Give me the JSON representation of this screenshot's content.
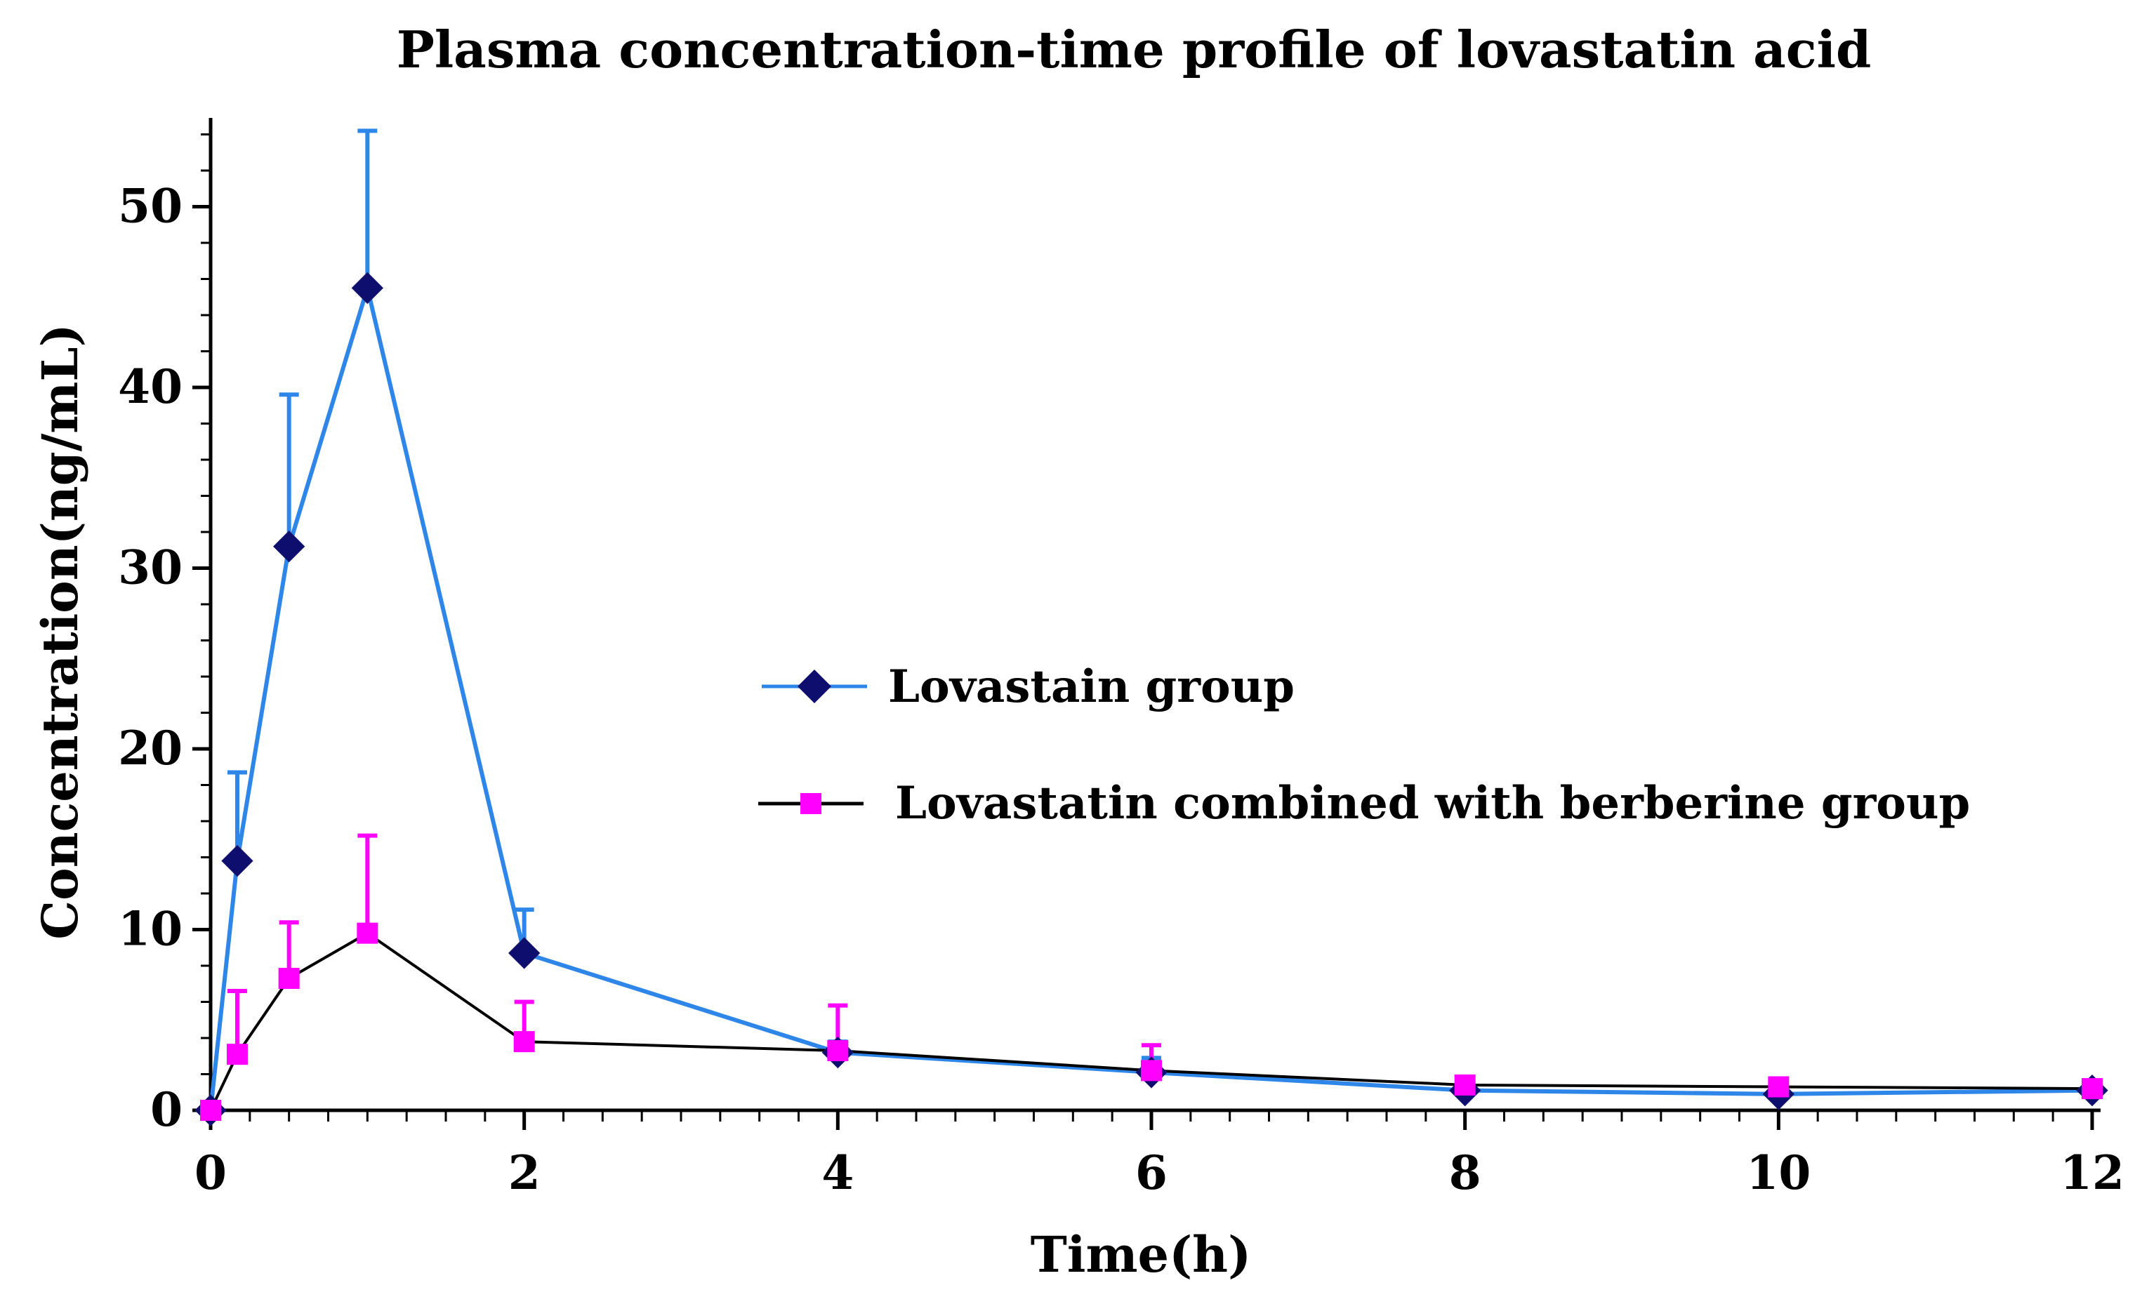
{
  "chart_data": {
    "type": "line",
    "title": "Plasma concentration-time profile of lovastatin acid",
    "xlabel": "Time(h)",
    "ylabel": "Concentration(ng/mL)",
    "xlim": [
      0,
      12
    ],
    "ylim": [
      0,
      55
    ],
    "xticks": [
      0,
      2,
      4,
      6,
      8,
      10,
      12
    ],
    "xtick_labels": [
      "0",
      "2",
      "4",
      "6",
      "8",
      "10",
      "12"
    ],
    "yticks": [
      0,
      10,
      20,
      30,
      40,
      50
    ],
    "ytick_labels": [
      "0",
      "10",
      "20",
      "30",
      "40",
      "50"
    ],
    "grid": false,
    "legend_position": "center-right",
    "series": [
      {
        "name": "Lovastain group",
        "line_color": "#2E86E8",
        "marker_color": "#0D0E6E",
        "marker": "diamond",
        "x": [
          0,
          0.17,
          0.5,
          1,
          2,
          4,
          6,
          8,
          10,
          12
        ],
        "y": [
          0,
          13.8,
          31.2,
          45.5,
          8.7,
          3.2,
          2.1,
          1.1,
          0.9,
          1.1
        ],
        "error_upper": [
          0,
          18.7,
          39.6,
          54.2,
          11.1,
          3.8,
          2.9,
          1.4,
          1.1,
          1.3
        ]
      },
      {
        "name": "Lovastatin combined with berberine group",
        "line_color": "#000000",
        "marker_color": "#FF00FF",
        "marker": "square",
        "x": [
          0,
          0.17,
          0.5,
          1,
          2,
          4,
          6,
          8,
          10,
          12
        ],
        "y": [
          0,
          3.1,
          7.3,
          9.8,
          3.8,
          3.3,
          2.2,
          1.4,
          1.3,
          1.2
        ],
        "error_upper": [
          0,
          6.6,
          10.4,
          15.2,
          6.0,
          5.8,
          3.6,
          1.6,
          1.5,
          1.4
        ]
      }
    ]
  }
}
